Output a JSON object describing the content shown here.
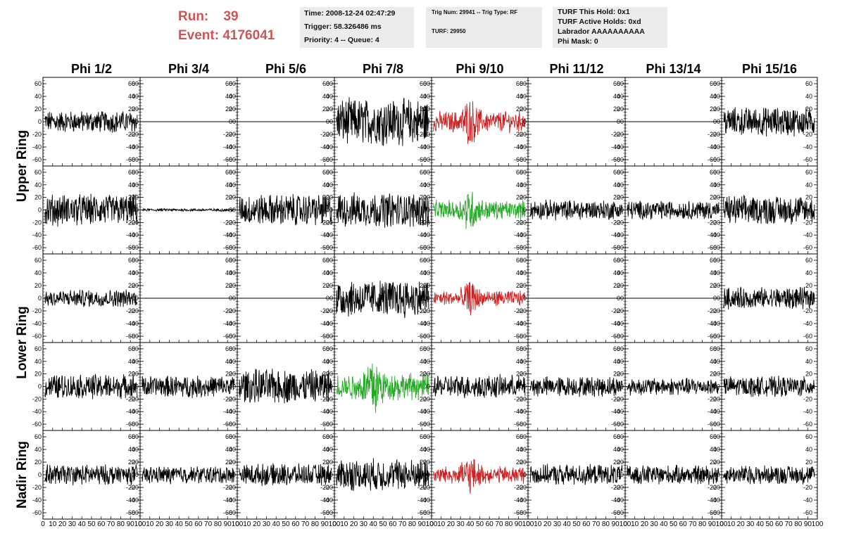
{
  "header": {
    "run_label": "Run:",
    "run_value": "39",
    "event_label": "Event:",
    "event_value": "4176041"
  },
  "info_time": {
    "time": "Time: 2008-12-24 02:47:29",
    "trigger": "Trigger: 58.326486 ms",
    "priority": "Priority: 4 -- Queue: 4"
  },
  "info_trig": {
    "trig": "Trig Num: 29941 -- Trig Type: RF",
    "turf": "TURF: 29950"
  },
  "info_turf": {
    "hold": "TURF This Hold: 0x1",
    "active": "TURF Active Holds: 0xd",
    "labrador": "Labrador AAAAAAAAAA",
    "mask": "Phi Mask: 0"
  },
  "colors": {
    "header_text": "#cc5555",
    "info_bg": "#ececec",
    "trace_default": "#000000",
    "trace_red": "#cc2222",
    "trace_green": "#22aa22"
  },
  "chart_data": {
    "type": "line",
    "columns": [
      "Phi 1/2",
      "Phi 3/4",
      "Phi 5/6",
      "Phi 7/8",
      "Phi 9/10",
      "Phi 11/12",
      "Phi 13/14",
      "Phi 15/16"
    ],
    "rows": [
      "Upper Ring",
      "Lower Ring",
      "Nadir Ring"
    ],
    "xlim": [
      0,
      100
    ],
    "ylim": [
      -70,
      70
    ],
    "yticks": [
      -60,
      -40,
      -20,
      0,
      20,
      40,
      60
    ],
    "xtick_labels": [
      "0",
      "10",
      "20",
      "30",
      "40",
      "50",
      "60",
      "70",
      "80",
      "90",
      "100"
    ],
    "grid": false,
    "panels": [
      {
        "row": 0,
        "col": 0,
        "color": "black",
        "amplitude": 15,
        "flat": false
      },
      {
        "row": 0,
        "col": 1,
        "color": "black",
        "amplitude": 0,
        "flat": true
      },
      {
        "row": 0,
        "col": 2,
        "color": "black",
        "amplitude": 0,
        "flat": true
      },
      {
        "row": 0,
        "col": 3,
        "color": "black",
        "amplitude": 32,
        "flat": false
      },
      {
        "row": 0,
        "col": 4,
        "color": "red",
        "amplitude": 22,
        "flat": false
      },
      {
        "row": 0,
        "col": 5,
        "color": "black",
        "amplitude": 0,
        "flat": true
      },
      {
        "row": 0,
        "col": 6,
        "color": "black",
        "amplitude": 0,
        "flat": true
      },
      {
        "row": 0,
        "col": 7,
        "color": "black",
        "amplitude": 20,
        "flat": false
      },
      {
        "row": 1,
        "col": 0,
        "color": "black",
        "amplitude": 22,
        "flat": false
      },
      {
        "row": 1,
        "col": 1,
        "color": "black",
        "amplitude": 2,
        "flat": false
      },
      {
        "row": 1,
        "col": 2,
        "color": "black",
        "amplitude": 22,
        "flat": false
      },
      {
        "row": 1,
        "col": 3,
        "color": "black",
        "amplitude": 24,
        "flat": false
      },
      {
        "row": 1,
        "col": 4,
        "color": "green",
        "amplitude": 20,
        "flat": false
      },
      {
        "row": 1,
        "col": 5,
        "color": "black",
        "amplitude": 14,
        "flat": false
      },
      {
        "row": 1,
        "col": 6,
        "color": "black",
        "amplitude": 13,
        "flat": false
      },
      {
        "row": 1,
        "col": 7,
        "color": "black",
        "amplitude": 20,
        "flat": false
      },
      {
        "row": 2,
        "col": 0,
        "color": "black",
        "amplitude": 12,
        "flat": false
      },
      {
        "row": 2,
        "col": 1,
        "color": "black",
        "amplitude": 0,
        "flat": true
      },
      {
        "row": 2,
        "col": 2,
        "color": "black",
        "amplitude": 0,
        "flat": true
      },
      {
        "row": 2,
        "col": 3,
        "color": "black",
        "amplitude": 26,
        "flat": false
      },
      {
        "row": 2,
        "col": 4,
        "color": "red",
        "amplitude": 16,
        "flat": false
      },
      {
        "row": 2,
        "col": 5,
        "color": "black",
        "amplitude": 0,
        "flat": true
      },
      {
        "row": 2,
        "col": 6,
        "color": "black",
        "amplitude": 0,
        "flat": true
      },
      {
        "row": 2,
        "col": 7,
        "color": "black",
        "amplitude": 15,
        "flat": false
      },
      {
        "row": 3,
        "col": 0,
        "color": "black",
        "amplitude": 17,
        "flat": false
      },
      {
        "row": 3,
        "col": 1,
        "color": "black",
        "amplitude": 15,
        "flat": false
      },
      {
        "row": 3,
        "col": 2,
        "color": "black",
        "amplitude": 24,
        "flat": false
      },
      {
        "row": 3,
        "col": 3,
        "color": "green",
        "amplitude": 28,
        "flat": false
      },
      {
        "row": 3,
        "col": 4,
        "color": "black",
        "amplitude": 16,
        "flat": false
      },
      {
        "row": 3,
        "col": 5,
        "color": "black",
        "amplitude": 14,
        "flat": false
      },
      {
        "row": 3,
        "col": 6,
        "color": "black",
        "amplitude": 12,
        "flat": false
      },
      {
        "row": 3,
        "col": 7,
        "color": "black",
        "amplitude": 14,
        "flat": false
      },
      {
        "row": 4,
        "col": 0,
        "color": "black",
        "amplitude": 14,
        "flat": false
      },
      {
        "row": 4,
        "col": 1,
        "color": "black",
        "amplitude": 12,
        "flat": false
      },
      {
        "row": 4,
        "col": 2,
        "color": "black",
        "amplitude": 15,
        "flat": false
      },
      {
        "row": 4,
        "col": 3,
        "color": "black",
        "amplitude": 22,
        "flat": false
      },
      {
        "row": 4,
        "col": 4,
        "color": "red",
        "amplitude": 18,
        "flat": false
      },
      {
        "row": 4,
        "col": 5,
        "color": "black",
        "amplitude": 14,
        "flat": false
      },
      {
        "row": 4,
        "col": 6,
        "color": "black",
        "amplitude": 13,
        "flat": false
      },
      {
        "row": 4,
        "col": 7,
        "color": "black",
        "amplitude": 13,
        "flat": false
      }
    ]
  }
}
